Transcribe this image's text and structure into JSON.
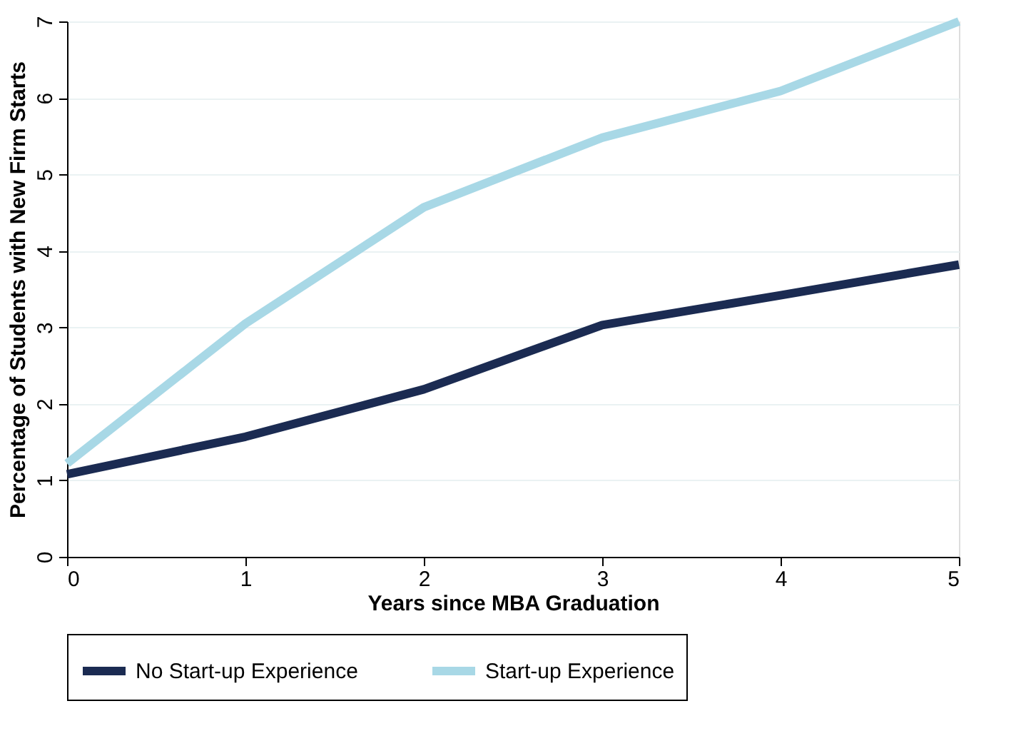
{
  "chart_data": {
    "type": "line",
    "xlabel": "Years since MBA Graduation",
    "ylabel": "Percentage of Students with New Firm Starts",
    "x": [
      0,
      1,
      2,
      3,
      4,
      5
    ],
    "xlim": [
      0,
      5
    ],
    "xticks": [
      0,
      1,
      2,
      3,
      4,
      5
    ],
    "ylim": [
      0,
      7
    ],
    "yticks": [
      0,
      1,
      2,
      3,
      4,
      5,
      6,
      7
    ],
    "series": [
      {
        "name": "No Start-up Experience",
        "color": "#1b2b52",
        "values": [
          1.08,
          1.57,
          2.19,
          3.03,
          3.42,
          3.82
        ]
      },
      {
        "name": "Start-up Experience",
        "color": "#a8d8e6",
        "values": [
          1.22,
          3.05,
          4.57,
          5.48,
          6.09,
          7.0
        ]
      }
    ],
    "grid": "y",
    "legend": "bottom",
    "marker": "none",
    "line_style": "solid"
  }
}
